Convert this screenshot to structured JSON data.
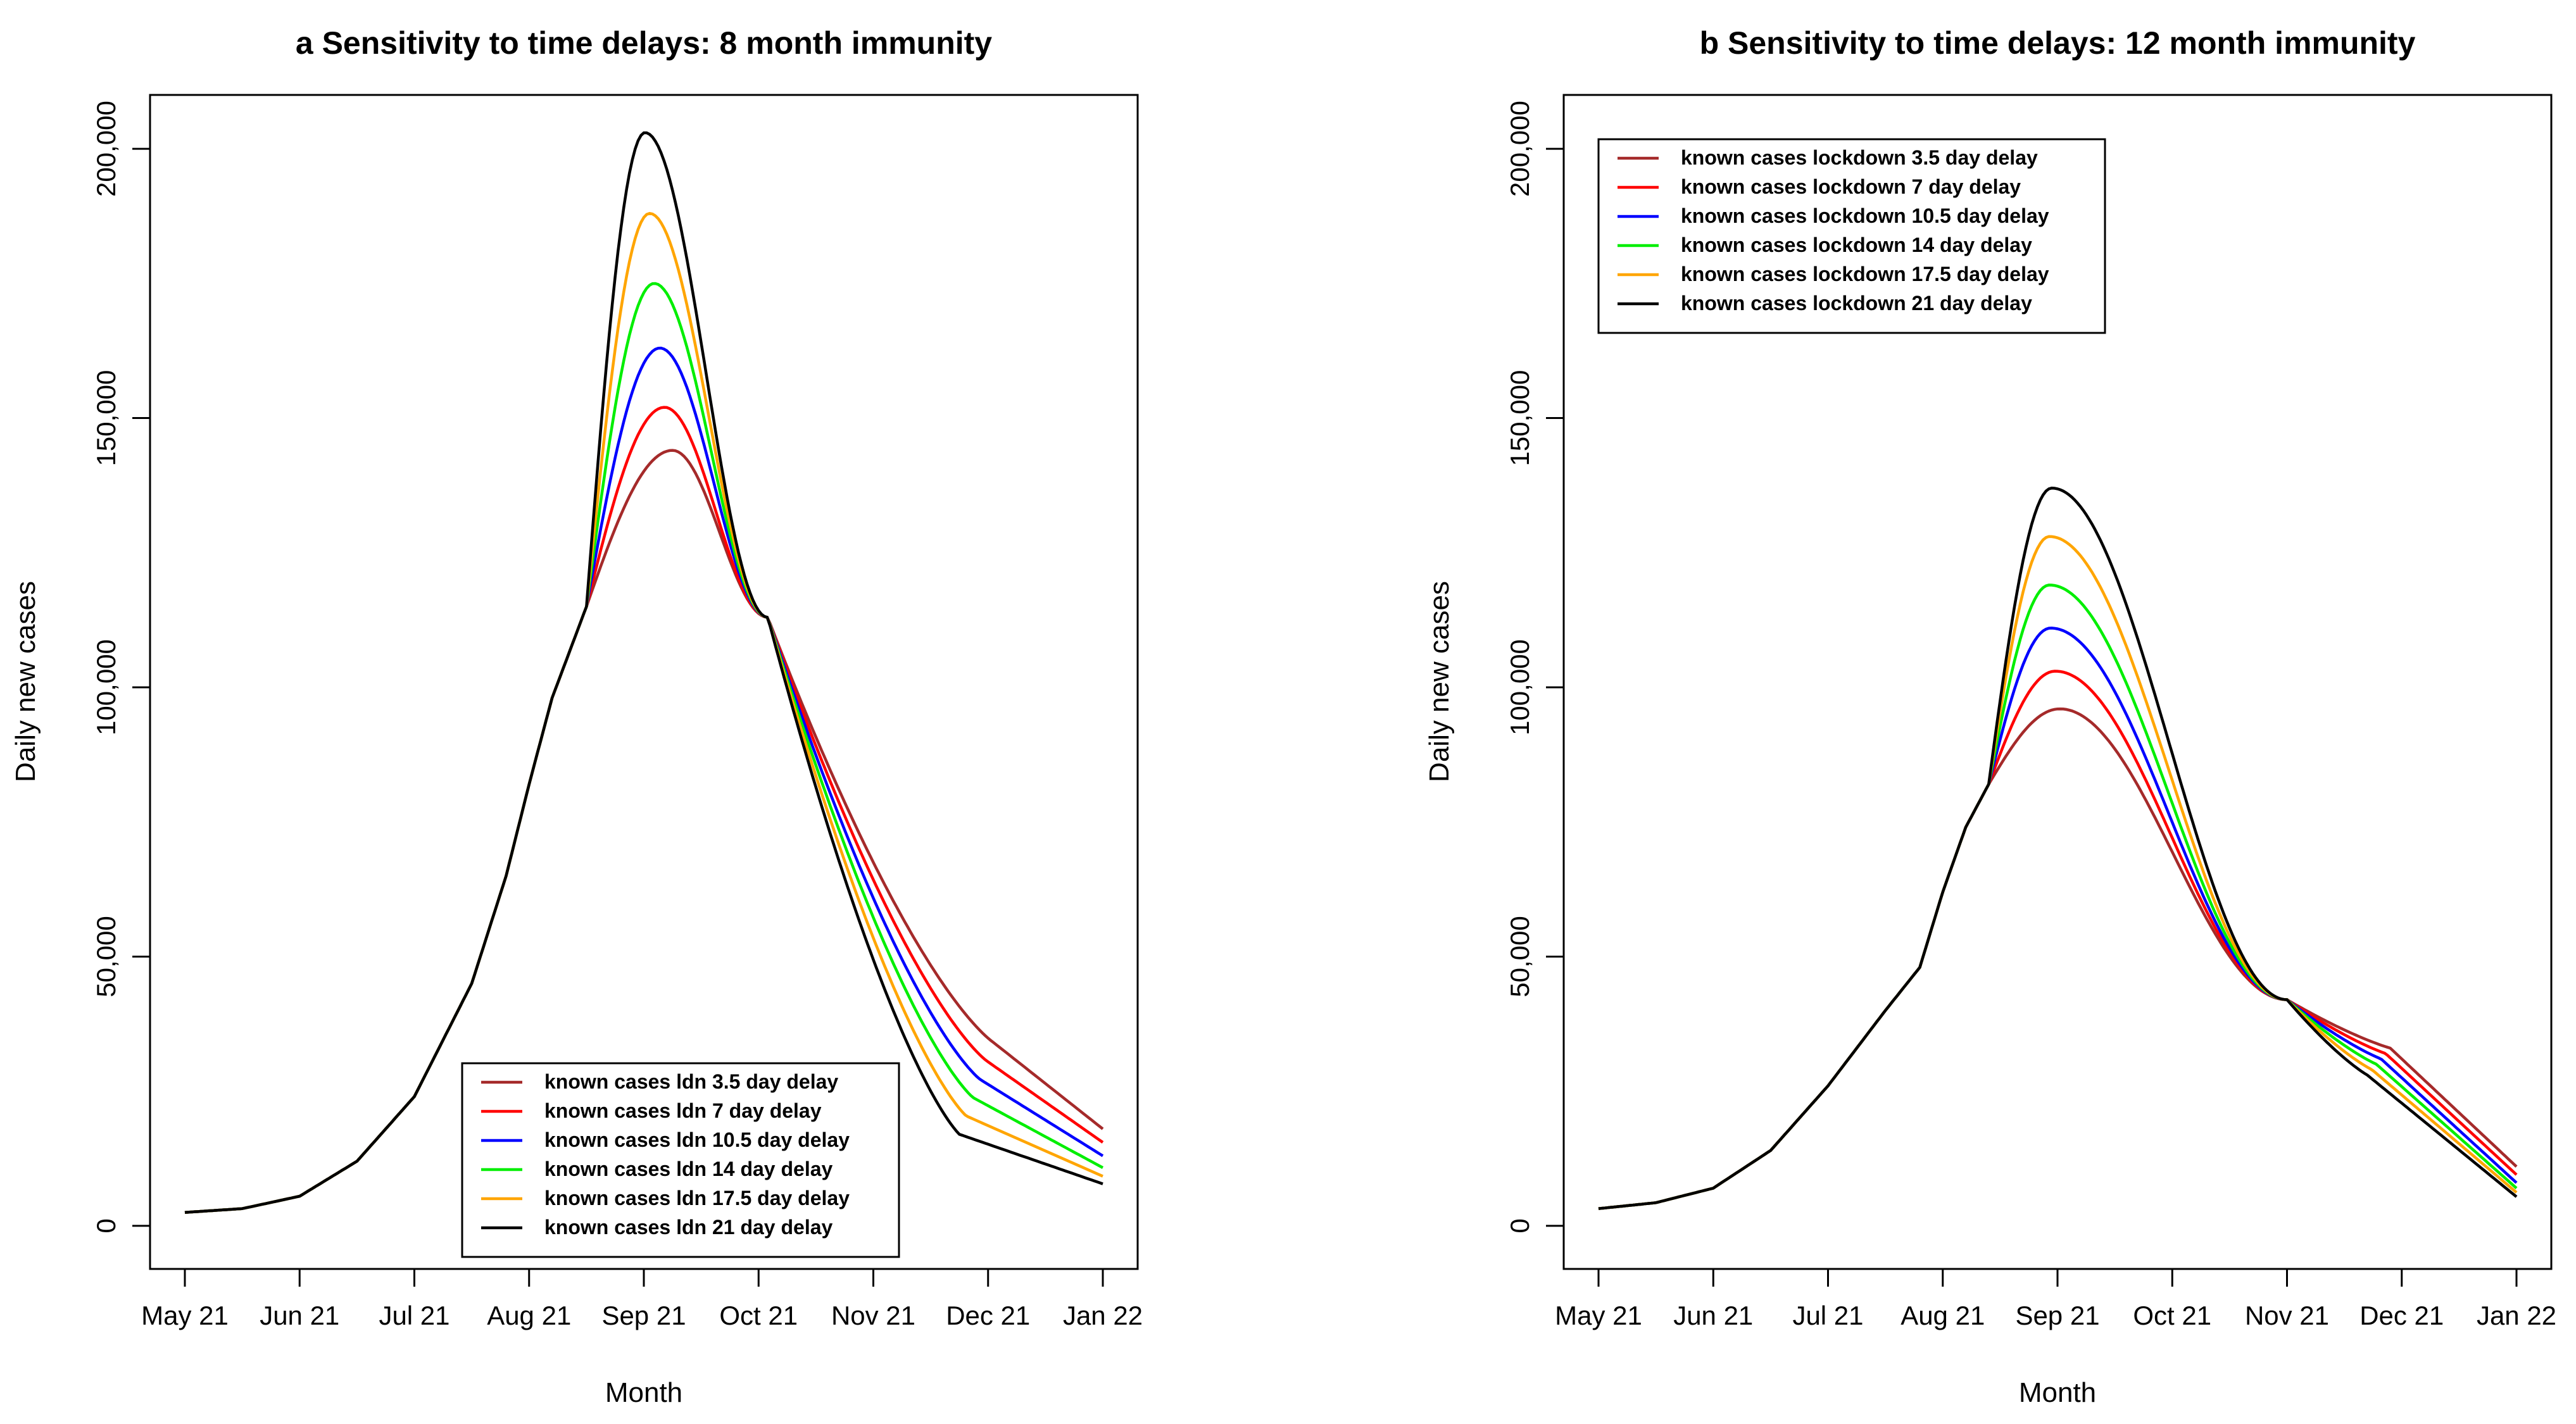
{
  "chart_data": [
    {
      "type": "line",
      "title": "a Sensitivity to time delays: 8 month immunity",
      "xlabel": "Month",
      "ylabel": "Daily new cases",
      "x_ticks": [
        "May 21",
        "Jun 21",
        "Jul 21",
        "Aug 21",
        "Sep 21",
        "Oct 21",
        "Nov 21",
        "Dec 21",
        "Jan 22"
      ],
      "y_ticks": [
        0,
        50000,
        100000,
        150000,
        200000
      ],
      "y_tick_labels": [
        "0",
        "50,000",
        "100,000",
        "150,000",
        "200,000"
      ],
      "ylim": [
        -8000,
        210000
      ],
      "x_unit": "months since May 2021 (0 = May 21, 8 = Jan 22)",
      "legend_position": "bottom-center",
      "series": [
        {
          "name": "known cases ldn 3.5 day delay",
          "color": "#a52a2a",
          "peak_value": 144000,
          "peak_x": 4.25,
          "end_value": 18000
        },
        {
          "name": "known cases ldn 7 day delay",
          "color": "#ff0000",
          "peak_value": 152000,
          "peak_x": 4.18,
          "end_value": 15500
        },
        {
          "name": "known cases ldn 10.5 day delay",
          "color": "#0000ff",
          "peak_value": 163000,
          "peak_x": 4.14,
          "end_value": 13000
        },
        {
          "name": "known cases ldn 14 day delay",
          "color": "#00ee00",
          "peak_value": 175000,
          "peak_x": 4.09,
          "end_value": 10800
        },
        {
          "name": "known cases ldn 17.5 day delay",
          "color": "#ffa500",
          "peak_value": 188000,
          "peak_x": 4.05,
          "end_value": 9200
        },
        {
          "name": "known cases ldn 21 day delay",
          "color": "#000000",
          "peak_value": 203000,
          "peak_x": 4.01,
          "end_value": 7800
        }
      ]
    },
    {
      "type": "line",
      "title": "b Sensitivity to time delays: 12 month immunity",
      "xlabel": "Month",
      "ylabel": "Daily new cases",
      "x_ticks": [
        "May 21",
        "Jun 21",
        "Jul 21",
        "Aug 21",
        "Sep 21",
        "Oct 21",
        "Nov 21",
        "Dec 21",
        "Jan 22"
      ],
      "y_ticks": [
        0,
        50000,
        100000,
        150000,
        200000
      ],
      "y_tick_labels": [
        "0",
        "50,000",
        "100,000",
        "150,000",
        "200,000"
      ],
      "ylim": [
        -8000,
        210000
      ],
      "x_unit": "months since May 2021 (0 = May 21, 8 = Jan 22)",
      "legend_position": "top-left",
      "series": [
        {
          "name": "known cases lockdown 3.5 day delay",
          "color": "#a52a2a",
          "peak_value": 96000,
          "peak_x": 4.02,
          "end_value": 11000
        },
        {
          "name": "known cases lockdown 7 day delay",
          "color": "#ff0000",
          "peak_value": 103000,
          "peak_x": 3.98,
          "end_value": 9500
        },
        {
          "name": "known cases lockdown 10.5 day delay",
          "color": "#0000ff",
          "peak_value": 111000,
          "peak_x": 3.94,
          "end_value": 8000
        },
        {
          "name": "known cases lockdown 14 day delay",
          "color": "#00ee00",
          "peak_value": 119000,
          "peak_x": 3.93,
          "end_value": 7000
        },
        {
          "name": "known cases lockdown 17.5 day delay",
          "color": "#ffa500",
          "peak_value": 128000,
          "peak_x": 3.93,
          "end_value": 6200
        },
        {
          "name": "known cases lockdown 21 day delay",
          "color": "#000000",
          "peak_value": 137000,
          "peak_x": 3.95,
          "end_value": 5400
        }
      ]
    }
  ]
}
